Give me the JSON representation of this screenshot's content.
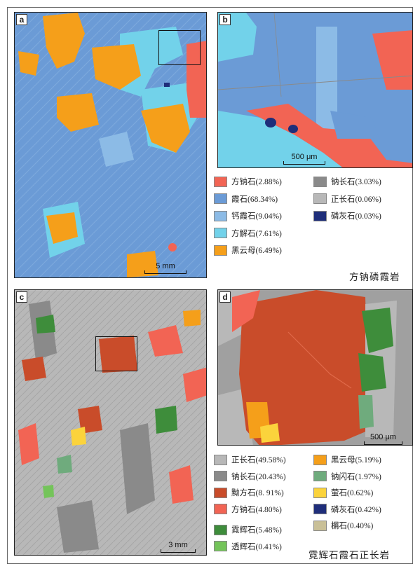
{
  "colors": {
    "sodalite": "#f26454",
    "nepheline": "#6b9bd6",
    "ca_nepheline": "#8cbbe6",
    "analcime": "#72d2ea",
    "biotite": "#f59f1a",
    "albite": "#8a8a8a",
    "orthoclase": "#b8b8b8",
    "apatite": "#1f2e7a",
    "eudialyte": "#c94c2a",
    "aegirine": "#3e8d3b",
    "arfvedsonite": "#6fab7d",
    "fluorite": "#fbd33c",
    "titanite": "#c9c098",
    "tremolite": "#74c45a"
  },
  "panels": {
    "a": {
      "label": "a",
      "scale": "5 mm"
    },
    "b": {
      "label": "b",
      "scale": "500 μm"
    },
    "c": {
      "label": "c",
      "scale": "3 mm"
    },
    "d": {
      "label": "d",
      "scale": "500 μm"
    }
  },
  "legend_top": {
    "col1": [
      {
        "text": "方钠石(2.88%)",
        "color_key": "sodalite"
      },
      {
        "text": "霞石(68.34%)",
        "color_key": "nepheline"
      },
      {
        "text": "钙霞石(9.04%)",
        "color_key": "ca_nepheline"
      },
      {
        "text": "方解石(7.61%)",
        "color_key": "analcime"
      },
      {
        "text": "黑云母(6.49%)",
        "color_key": "biotite"
      }
    ],
    "col2": [
      {
        "text": "钠长石(3.03%)",
        "color_key": "albite"
      },
      {
        "text": "正长石(0.06%)",
        "color_key": "orthoclase"
      },
      {
        "text": "磷灰石(0.03%)",
        "color_key": "apatite"
      }
    ]
  },
  "rock_top": "方钠磷霞岩",
  "legend_bottom": {
    "col1": [
      {
        "text": "正长石(49.58%)",
        "color_key": "orthoclase"
      },
      {
        "text": "钠长石(20.43%)",
        "color_key": "albite"
      },
      {
        "text": "黝方石(8. 91%)",
        "color_key": "eudialyte"
      },
      {
        "text": "方钠石(4.80%)",
        "color_key": "sodalite"
      },
      {
        "text": "霓辉石(5.48%)",
        "color_key": "aegirine"
      },
      {
        "text": "透辉石(0.41%)",
        "color_key": "tremolite"
      }
    ],
    "col2": [
      {
        "text": "黑云母(5.19%)",
        "color_key": "biotite"
      },
      {
        "text": "钠闪石(1.97%)",
        "color_key": "arfvedsonite"
      },
      {
        "text": "萤石(0.62%)",
        "color_key": "fluorite"
      },
      {
        "text": "磷灰石(0.42%)",
        "color_key": "apatite"
      },
      {
        "text": "榍石(0.40%)",
        "color_key": "titanite"
      }
    ]
  },
  "rock_bottom": "霓辉石霞石正长岩"
}
